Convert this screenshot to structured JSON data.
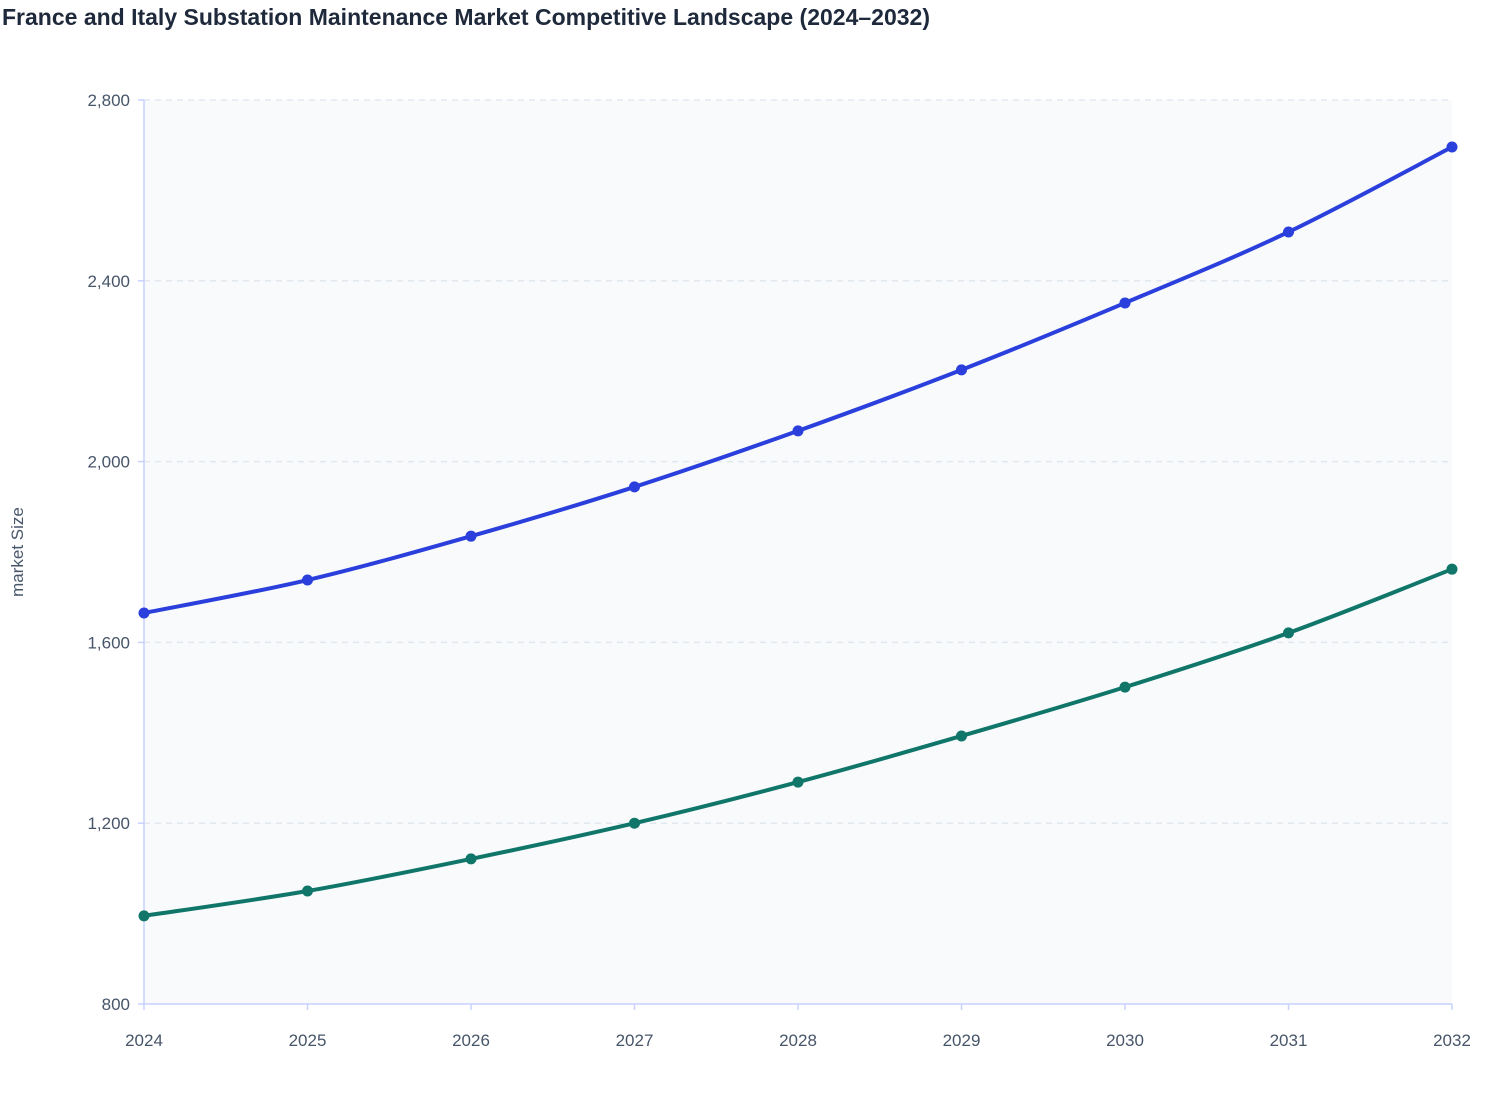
{
  "chart_data": {
    "type": "line",
    "title": "France and Italy Substation Maintenance Market Competitive Landscape (2024–2032)",
    "xlabel": "",
    "ylabel": "market Size",
    "x": [
      "2024",
      "2025",
      "2026",
      "2027",
      "2028",
      "2029",
      "2030",
      "2031",
      "2032"
    ],
    "ylim": [
      800,
      2800
    ],
    "yticks": [
      800,
      1200,
      1600,
      2000,
      2400,
      2800
    ],
    "ytick_labels": [
      "800",
      "1,200",
      "1,600",
      "2,000",
      "2,400",
      "2,800"
    ],
    "grid": "horizontal dashed",
    "series": [
      {
        "color": "#2a3fdc",
        "values": [
          1665,
          1738,
          1835,
          1944,
          2068,
          2203,
          2351,
          2508,
          2696
        ]
      },
      {
        "color": "#11766a",
        "values": [
          995,
          1050,
          1121,
          1200,
          1291,
          1393,
          1501,
          1621,
          1762
        ]
      }
    ]
  }
}
